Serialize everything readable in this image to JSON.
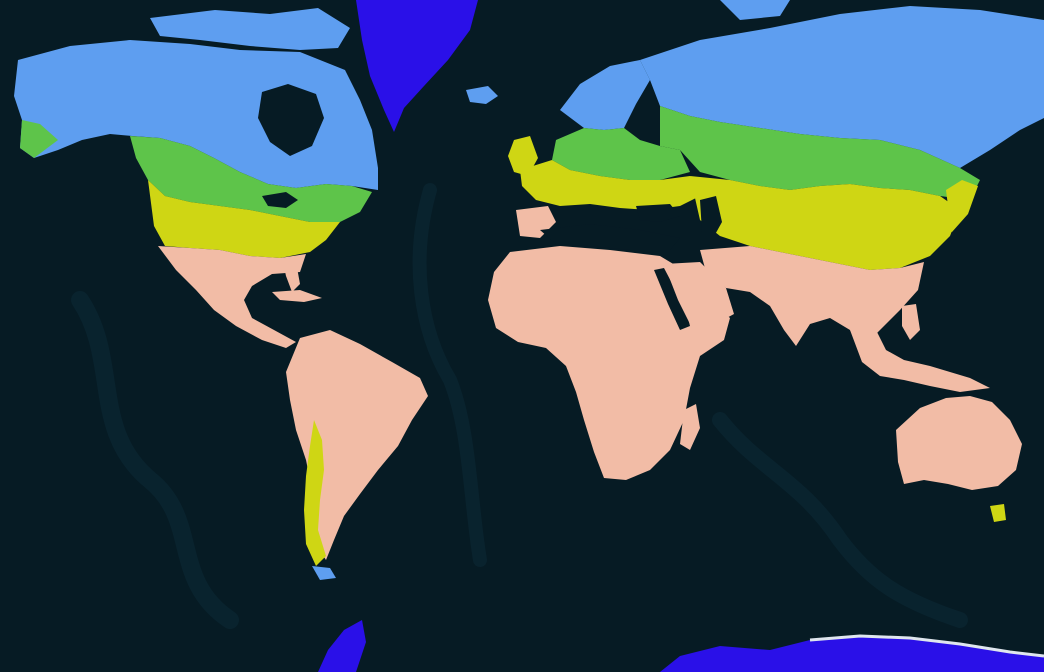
{
  "map": {
    "projection": "web-mercator",
    "ocean_color": "#061b24",
    "ocean_relief_color": "#0c2a36",
    "ice_cap_edge_color": "#dfe6ee",
    "classes": [
      {
        "key": "ice",
        "color": "#2a10e8"
      },
      {
        "key": "boreal",
        "color": "#5e9ef0"
      },
      {
        "key": "cold-temperate",
        "color": "#5ec44a"
      },
      {
        "key": "warm-temperate",
        "color": "#cfd614"
      },
      {
        "key": "subtropical-tropical",
        "color": "#f2bca6"
      }
    ]
  }
}
